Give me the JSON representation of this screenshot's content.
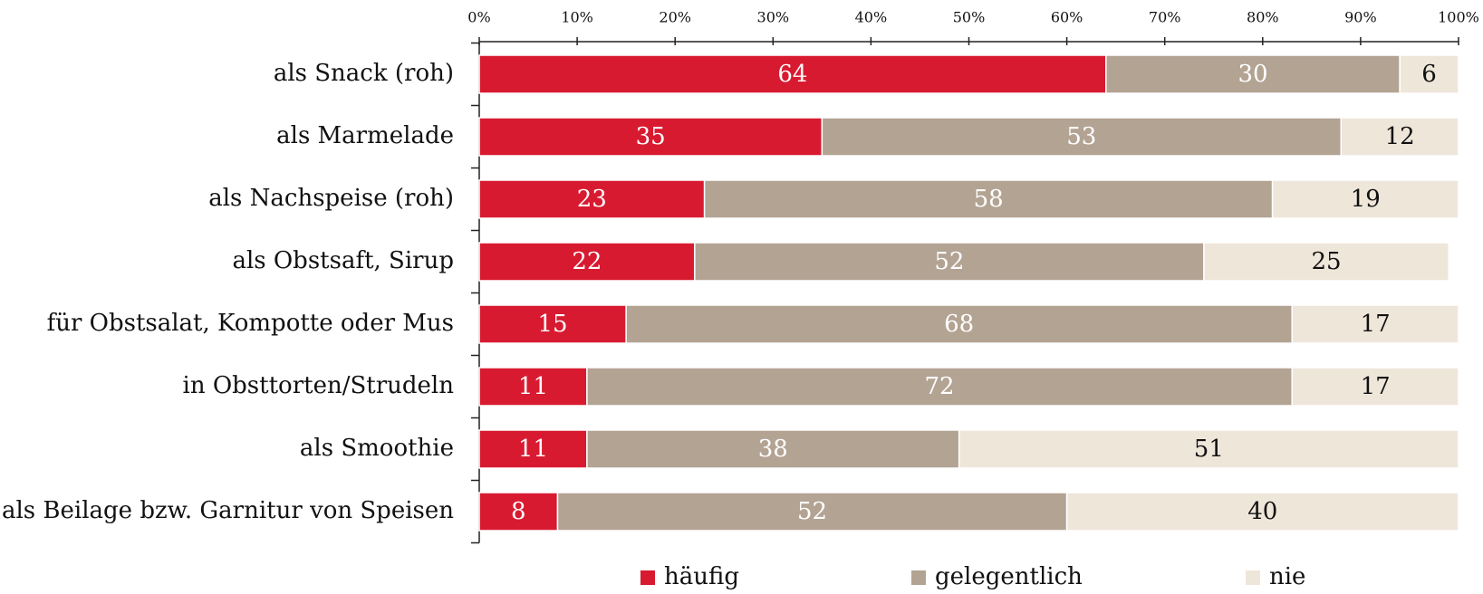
{
  "chart_data": {
    "type": "stacked-barh",
    "categories": [
      "als Snack (roh)",
      "als Marmelade",
      "als Nachspeise (roh)",
      "als Obstsaft, Sirup",
      "für Obstsalat, Kompotte oder Mus",
      "in Obsttorten/Strudeln",
      "als Smoothie",
      "als Beilage bzw. Garnitur von Speisen"
    ],
    "series": [
      {
        "name": "häufig",
        "color": "#d81a31",
        "values": [
          64,
          35,
          23,
          22,
          15,
          11,
          11,
          8
        ]
      },
      {
        "name": "gelegentlich",
        "color": "#b3a393",
        "values": [
          30,
          53,
          58,
          52,
          68,
          72,
          38,
          52
        ]
      },
      {
        "name": "nie",
        "color": "#efe6da",
        "values": [
          6,
          12,
          19,
          25,
          17,
          17,
          51,
          40
        ]
      }
    ],
    "xlim": [
      0,
      100
    ],
    "xticks": [
      {
        "value": 0,
        "label": "0%"
      },
      {
        "value": 10,
        "label": "10%"
      },
      {
        "value": 20,
        "label": "20%"
      },
      {
        "value": 30,
        "label": "30%"
      },
      {
        "value": 40,
        "label": "40%"
      },
      {
        "value": 50,
        "label": "50%"
      },
      {
        "value": 60,
        "label": "60%"
      },
      {
        "value": 70,
        "label": "70%"
      },
      {
        "value": 80,
        "label": "80%"
      },
      {
        "value": 90,
        "label": "90%"
      },
      {
        "value": 100,
        "label": "100%"
      }
    ],
    "legend": "bottom"
  }
}
